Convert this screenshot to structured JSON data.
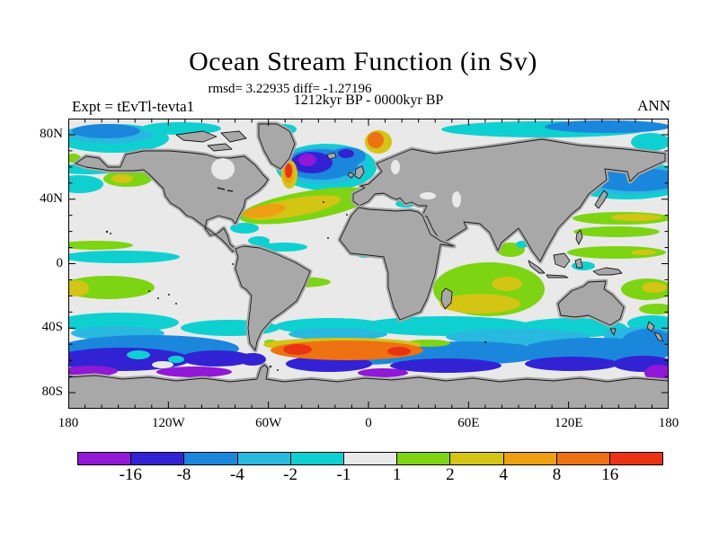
{
  "title": "Ocean Stream Function (in Sv)",
  "subtitle": {
    "rmsd_line": "rmsd= 3.22935 diff= -1.27196",
    "period_line": "1212kyr BP - 0000kyr BP"
  },
  "header": {
    "experiment_label": "Expt = tEvTl-tevta1",
    "season_label": "ANN"
  },
  "axes": {
    "x_labels": [
      {
        "text": "180",
        "lon": -180
      },
      {
        "text": "120W",
        "lon": -120
      },
      {
        "text": "60W",
        "lon": -60
      },
      {
        "text": "0",
        "lon": 0
      },
      {
        "text": "60E",
        "lon": 60
      },
      {
        "text": "120E",
        "lon": 120
      },
      {
        "text": "180",
        "lon": 180
      }
    ],
    "y_labels": [
      {
        "text": "80N",
        "lat": 80
      },
      {
        "text": "40N",
        "lat": 40
      },
      {
        "text": "0",
        "lat": 0
      },
      {
        "text": "40S",
        "lat": -40
      },
      {
        "text": "80S",
        "lat": -80
      }
    ],
    "minor_tick_deg": 10,
    "major_tick_deg_x": 60,
    "major_tick_deg_y": 40
  },
  "colorbar": {
    "segments": [
      "#9018D6",
      "#3322D4",
      "#1B87DC",
      "#29B8E0",
      "#0FD0D0",
      "#E9E9E9",
      "#7DD412",
      "#D4C414",
      "#EDA012",
      "#EE7212",
      "#E93312"
    ],
    "boundary_labels": [
      "-16",
      "-8",
      "-4",
      "-2",
      "-1",
      "1",
      "2",
      "4",
      "8",
      "16"
    ]
  },
  "palette": {
    "land": "#A8A8A8",
    "ocean": "#E9E9E9",
    "neutral": "#E9E9E9",
    "purple": "#9018D6",
    "darkblue": "#3322D4",
    "blue": "#1B87DC",
    "lightblue": "#29B8E0",
    "cyan": "#0FD0D0",
    "green": "#7DD412",
    "yellow": "#D4C414",
    "orangeyellow": "#EDA012",
    "orange": "#EE7212",
    "red": "#E93312"
  },
  "chart_data": {
    "type": "heatmap",
    "title": "Ocean Stream Function (in Sv)",
    "units": "Sv",
    "statistics": {
      "rmsd": 3.22935,
      "diff": -1.27196
    },
    "period": "1212kyr BP - 0000kyr BP",
    "experiment": "tEvTl-tevta1",
    "season": "ANN",
    "projection": "equirectangular lat-lon world map",
    "lon_range": [
      -180,
      180
    ],
    "lat_range": [
      -90,
      90
    ],
    "contour_levels": [
      -16,
      -8,
      -4,
      -2,
      -1,
      1,
      2,
      4,
      8,
      16
    ],
    "level_colors": [
      "#9018D6",
      "#3322D4",
      "#1B87DC",
      "#29B8E0",
      "#0FD0D0",
      "#E9E9E9",
      "#7DD412",
      "#D4C414",
      "#EDA012",
      "#EE7212",
      "#E93312"
    ],
    "notable_features": [
      {
        "region": "North Atlantic subpolar (45-60N)",
        "value_range": "-16 to < -16 (blue/purple blob)"
      },
      {
        "region": "US east coast Gulf Stream separation",
        "value_range": "> 16 (red/orange strip)"
      },
      {
        "region": "Mid North Atlantic 30-40N",
        "value_range": "2 to 8 (green/yellow/orange band)"
      },
      {
        "region": "Arctic shelves and NW Pacific 40N",
        "value_range": "-8 to -2 (blue bands)"
      },
      {
        "region": "Equatorial Pacific",
        "value_range": "-2 to -1 north of equator, 1 to 4 south"
      },
      {
        "region": "Indian Ocean 0-30S",
        "value_range": "1 to 4 (green with yellow core)"
      },
      {
        "region": "Southern Ocean 45-70S",
        "value_range": "-4 to < -16 circumpolar (blue/dark blue/purple)"
      },
      {
        "region": "South Atlantic-Indian 50S east of Drake Passage",
        "value_range": "8 to > 16 (orange band with red cores)"
      }
    ]
  }
}
